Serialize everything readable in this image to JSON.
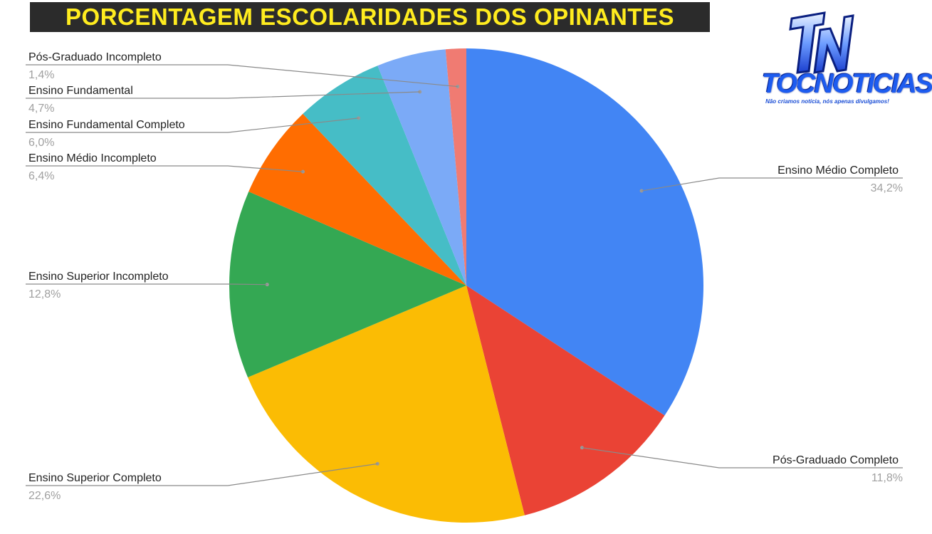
{
  "header": {
    "title": "PORCENTAGEM ESCOLARIDADES DOS OPINANTES"
  },
  "logo": {
    "monogram": "TN",
    "name": "TOCNOTICIAS",
    "tagline": "Não criamos notícia, nós apenas divulgamos!",
    "colors": {
      "primary": "#1d5cf0",
      "dark": "#0a1f80"
    }
  },
  "chart_data": {
    "type": "pie",
    "title": "PORCENTAGEM ESCOLARIDADES DOS OPINANTES",
    "start_angle_deg": 0,
    "direction": "clockwise",
    "legend": "none",
    "slices": [
      {
        "label": "Ensino Médio Completo",
        "value": 34.2,
        "display": "34,2%",
        "color": "#4285f4"
      },
      {
        "label": "Pós-Graduado Completo",
        "value": 11.8,
        "display": "11,8%",
        "color": "#ea4335"
      },
      {
        "label": "Ensino Superior Completo",
        "value": 22.6,
        "display": "22,6%",
        "color": "#fbbc04"
      },
      {
        "label": "Ensino Superior Incompleto",
        "value": 12.8,
        "display": "12,8%",
        "color": "#34a853"
      },
      {
        "label": "Ensino Médio Incompleto",
        "value": 6.4,
        "display": "6,4%",
        "color": "#ff6d01"
      },
      {
        "label": "Ensino Fundamental Completo",
        "value": 6.0,
        "display": "6,0%",
        "color": "#46bdc6"
      },
      {
        "label": "Ensino Fundamental",
        "value": 4.7,
        "display": "4,7%",
        "color": "#7baaf7"
      },
      {
        "label": "Pós-Graduado Incompleto",
        "value": 1.4,
        "display": "1,4%",
        "color": "#f07b72"
      }
    ]
  }
}
